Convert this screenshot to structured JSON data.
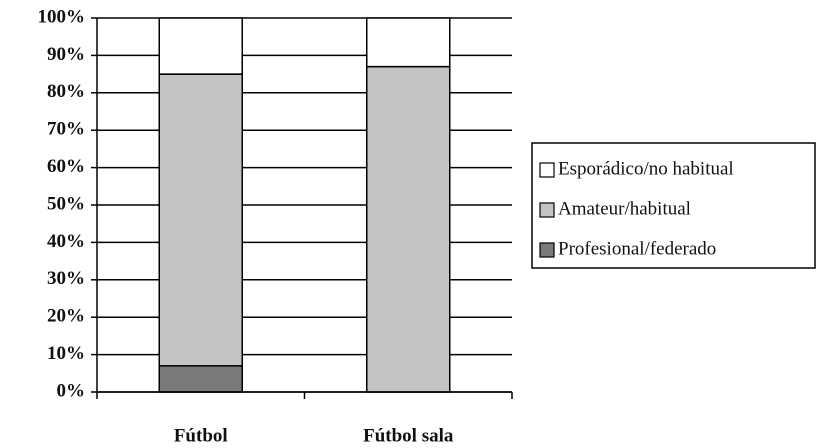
{
  "chart_data": {
    "type": "stacked_bar",
    "categories": [
      "Fútbol",
      "Fútbol sala"
    ],
    "series": [
      {
        "name": "Profesional/federado",
        "color": "#7a7a7a",
        "values": [
          7,
          0
        ]
      },
      {
        "name": "Amateur/habitual",
        "color": "#c4c4c4",
        "values": [
          78,
          87
        ]
      },
      {
        "name": "Esporádico/no habitual",
        "color": "#ffffff",
        "values": [
          15,
          13
        ]
      }
    ],
    "ylim": [
      0,
      100
    ],
    "yticks": [
      {
        "value": 0,
        "label": "0%"
      },
      {
        "value": 10,
        "label": "10%"
      },
      {
        "value": 20,
        "label": "20%"
      },
      {
        "value": 30,
        "label": "30%"
      },
      {
        "value": 40,
        "label": "40%"
      },
      {
        "value": 50,
        "label": "50%"
      },
      {
        "value": 60,
        "label": "60%"
      },
      {
        "value": 70,
        "label": "70%"
      },
      {
        "value": 80,
        "label": "80%"
      },
      {
        "value": 90,
        "label": "90%"
      },
      {
        "value": 100,
        "label": "100%"
      }
    ],
    "grid": true,
    "legend": "right"
  }
}
